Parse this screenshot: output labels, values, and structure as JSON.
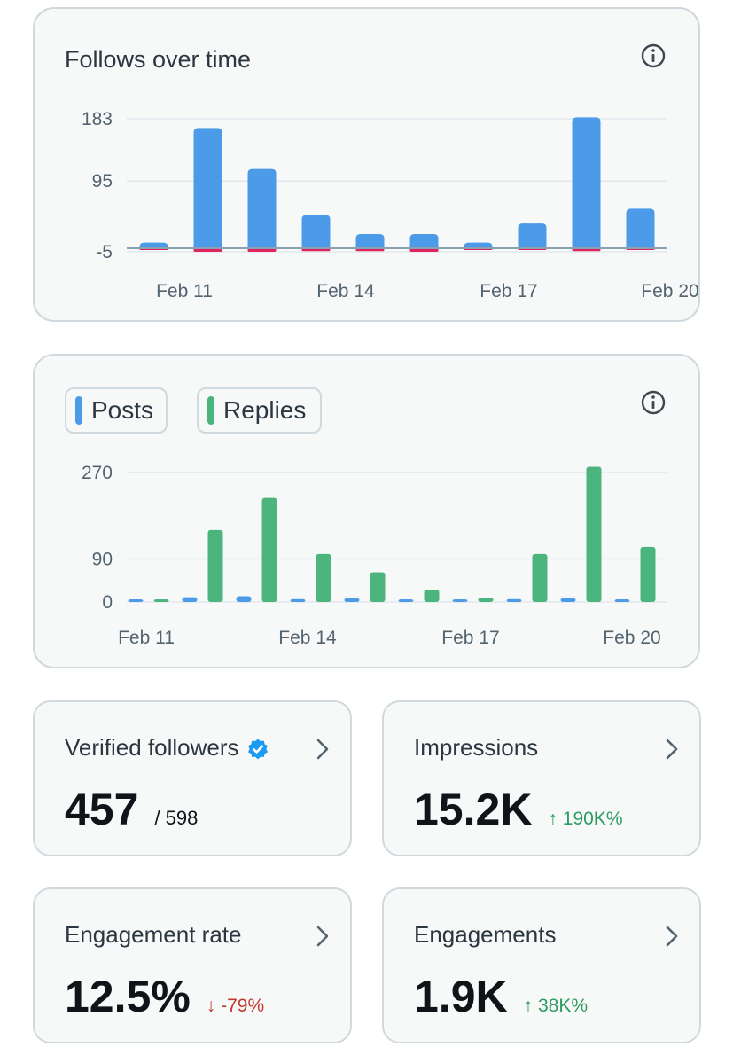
{
  "follows_chart": {
    "title": "Follows over time",
    "info_icon": "info-icon",
    "chart_data": {
      "type": "bar",
      "x": [
        "Feb 11",
        "Feb 12",
        "Feb 13",
        "Feb 14",
        "Feb 15",
        "Feb 16",
        "Feb 17",
        "Feb 18",
        "Feb 19",
        "Feb 20"
      ],
      "x_tick_labels": [
        "Feb 11",
        "Feb 14",
        "Feb 17",
        "Feb 20"
      ],
      "y_tick_labels": [
        "183",
        "95",
        "-5"
      ],
      "y_ticks": [
        183,
        95,
        -5
      ],
      "ylim": [
        -5,
        183
      ],
      "series": [
        {
          "values": [
            8,
            170,
            112,
            47,
            20,
            20,
            8,
            35,
            185,
            56
          ],
          "color": "#4c9be8"
        },
        {
          "values": [
            -2,
            -5,
            -5,
            -4,
            -4,
            -5,
            -2,
            -2,
            -4,
            -2
          ],
          "color": "#e0245e"
        }
      ],
      "baseline": 0
    }
  },
  "posts_chart": {
    "legend": [
      {
        "label": "Posts",
        "color": "#4c9be8"
      },
      {
        "label": "Replies",
        "color": "#4bb57d"
      }
    ],
    "info_icon": "info-icon",
    "chart_data": {
      "type": "bar",
      "x": [
        "Feb 11",
        "Feb 12",
        "Feb 13",
        "Feb 14",
        "Feb 15",
        "Feb 16",
        "Feb 17",
        "Feb 18",
        "Feb 19",
        "Feb 20"
      ],
      "x_tick_labels": [
        "Feb 11",
        "Feb 14",
        "Feb 17",
        "Feb 20"
      ],
      "y_tick_labels": [
        "270",
        "90",
        "0"
      ],
      "y_ticks": [
        270,
        90,
        0
      ],
      "ylim": [
        0,
        270
      ],
      "series": [
        {
          "name": "Posts",
          "values": [
            4,
            10,
            12,
            6,
            8,
            2,
            0,
            6,
            8,
            4
          ],
          "color": "#4c9be8"
        },
        {
          "name": "Replies",
          "values": [
            2,
            150,
            217,
            100,
            62,
            26,
            9,
            100,
            282,
            115
          ],
          "color": "#4bb57d"
        }
      ]
    }
  },
  "stats": {
    "verified": {
      "label": "Verified followers",
      "value": "457",
      "total": "/ 598",
      "badge_icon": "verified-badge-icon"
    },
    "impressions": {
      "label": "Impressions",
      "value": "15.2K",
      "delta": "↑ 190K%"
    },
    "engagement_rate": {
      "label": "Engagement rate",
      "value": "12.5%",
      "delta": "↓ -79%"
    },
    "engagements": {
      "label": "Engagements",
      "value": "1.9K",
      "delta": "↑ 38K%"
    }
  }
}
